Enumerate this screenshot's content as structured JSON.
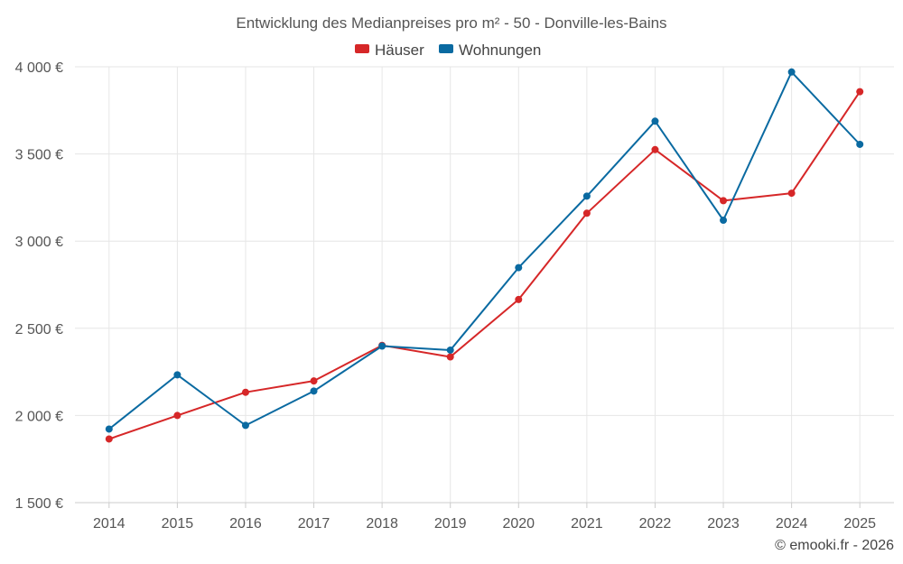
{
  "chart_data": {
    "type": "line",
    "title": "Entwicklung des Medianpreises pro m² - 50 - Donville-les-Bains",
    "categories": [
      "2014",
      "2015",
      "2016",
      "2017",
      "2018",
      "2019",
      "2020",
      "2021",
      "2022",
      "2023",
      "2024",
      "2025"
    ],
    "series": [
      {
        "name": "Häuser",
        "color": "#d62728",
        "values": [
          1865,
          2000,
          2133,
          2198,
          2402,
          2336,
          2665,
          3160,
          3525,
          3232,
          3275,
          3857
        ]
      },
      {
        "name": "Wohnungen",
        "color": "#0a6aa1",
        "values": [
          1922,
          2233,
          1943,
          2140,
          2398,
          2375,
          2848,
          3258,
          3688,
          3120,
          3970,
          3555
        ]
      }
    ],
    "ylim": [
      1500,
      4000
    ],
    "yticks": [
      1500,
      2000,
      2500,
      3000,
      3500,
      4000
    ],
    "ytick_labels": [
      "1 500 €",
      "2 000 €",
      "2 500 €",
      "3 000 €",
      "3 500 €",
      "4 000 €"
    ],
    "legend_position": "top-center",
    "grid": true
  },
  "credit": "© emooki.fr - 2026"
}
